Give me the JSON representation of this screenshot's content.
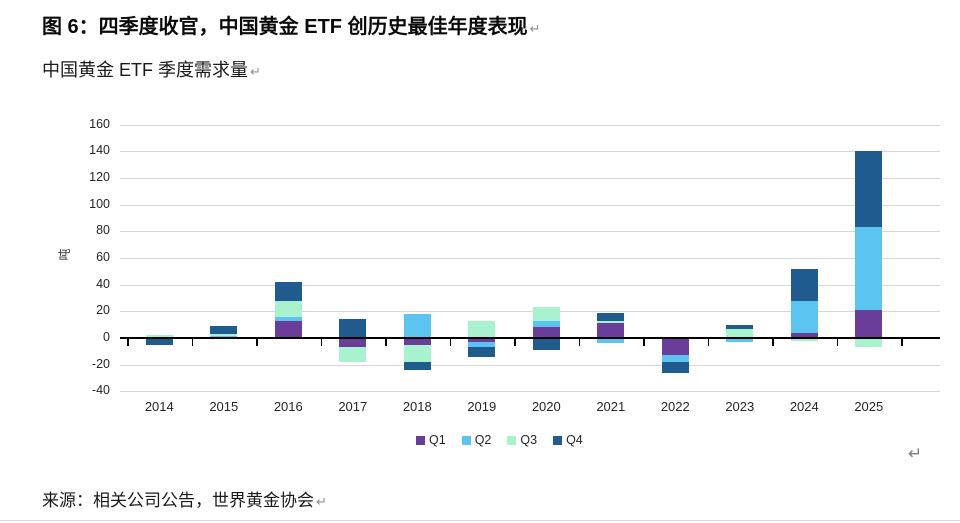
{
  "header": {
    "title": "图 6：四季度收官，中国黄金 ETF 创历史最佳年度表现",
    "title_return_mark": "↵",
    "subtitle": "中国黄金 ETF 季度需求量",
    "subtitle_return_mark": "↵"
  },
  "chart_data": {
    "type": "bar",
    "stacked": true,
    "title": "中国黄金 ETF 季度需求量",
    "xlabel": "",
    "ylabel": "吨",
    "ylim": [
      -40,
      160
    ],
    "ytick_step": 20,
    "grid": true,
    "legend_position": "bottom",
    "categories": [
      "2014",
      "2015",
      "2016",
      "2017",
      "2018",
      "2019",
      "2020",
      "2021",
      "2022",
      "2023",
      "2024",
      "2025"
    ],
    "series": [
      {
        "name": "Q1",
        "color": "#693d99",
        "values": [
          0,
          0,
          13,
          -7,
          -5,
          -3,
          8,
          11,
          -13,
          0,
          4,
          21
        ]
      },
      {
        "name": "Q2",
        "color": "#5cc4f1",
        "values": [
          0,
          1.5,
          3,
          0,
          18,
          -4,
          5,
          -4,
          -5,
          -3,
          24,
          62
        ]
      },
      {
        "name": "Q3",
        "color": "#a8f2cd",
        "values": [
          2,
          1.5,
          12,
          -11,
          -13,
          13,
          10,
          2,
          1,
          7,
          -2,
          -7
        ]
      },
      {
        "name": "Q4",
        "color": "#1f5c8d",
        "values": [
          -5,
          6,
          14,
          14,
          -6,
          -7,
          -9,
          5.5,
          -8,
          3,
          24,
          57
        ]
      }
    ]
  },
  "footer": {
    "source": "来源：相关公司公告，世界黄金协会",
    "source_return_mark": "↵",
    "stray_return_mark": "↵"
  },
  "colors": {
    "gridline": "#d6d6d6",
    "axis": "#000000",
    "q1": "#693d99",
    "q2": "#5cc4f1",
    "q3": "#a8f2cd",
    "q4": "#1f5c8d"
  }
}
